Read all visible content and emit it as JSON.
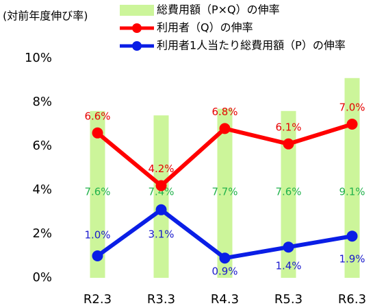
{
  "chart_data": {
    "type": "bar-line",
    "y_label": "(対前年度伸び率)",
    "categories": [
      "R2.3",
      "R3.3",
      "R4.3",
      "R5.3",
      "R6.3"
    ],
    "ylim": [
      0,
      10
    ],
    "yticks": [
      {
        "value": 0,
        "label": "0%"
      },
      {
        "value": 2,
        "label": "2%"
      },
      {
        "value": 4,
        "label": "4%"
      },
      {
        "value": 6,
        "label": "6%"
      },
      {
        "value": 8,
        "label": "8%"
      },
      {
        "value": 10,
        "label": "10%"
      }
    ],
    "series": [
      {
        "name": "総費用額（P×Q）の伸率",
        "kind": "bar",
        "color": "#ccf59a",
        "label_color": "#22b24c",
        "values": [
          7.6,
          7.4,
          7.7,
          7.6,
          9.1
        ],
        "value_labels": [
          "7.6%",
          "7.4%",
          "7.7%",
          "7.6%",
          "9.1%"
        ]
      },
      {
        "name": "利用者（Q）の伸率",
        "kind": "line",
        "color": "#ff0000",
        "label_color": "#e60000",
        "values": [
          6.6,
          4.2,
          6.8,
          6.1,
          7.0
        ],
        "value_labels": [
          "6.6%",
          "4.2%",
          "6.8%",
          "6.1%",
          "7.0%"
        ]
      },
      {
        "name": "利用者1人当たり総費用額（P）の伸率",
        "kind": "line",
        "color": "#0a1ee6",
        "label_color": "#1a1acc",
        "values": [
          1.0,
          3.1,
          0.9,
          1.4,
          1.9
        ],
        "value_labels": [
          "1.0%",
          "3.1%",
          "0.9%",
          "1.4%",
          "1.9%"
        ]
      }
    ]
  }
}
